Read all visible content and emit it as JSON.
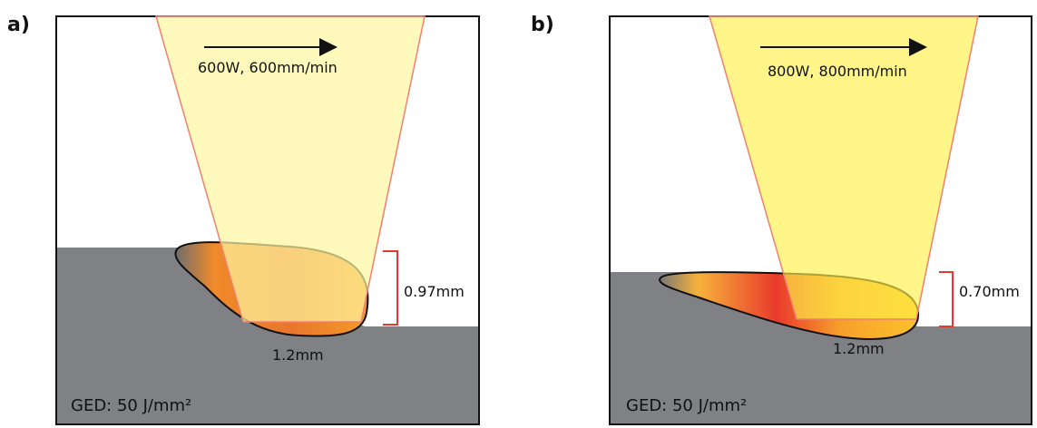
{
  "panels": [
    {
      "label": "a)",
      "process": "600W, 600mm/min",
      "depth": "0.97mm",
      "width": "1.2mm",
      "ged": "GED: 50 J/mm²"
    },
    {
      "label": "b)",
      "process": "800W, 800mm/min",
      "depth": "0.70mm",
      "width": "1.2mm",
      "ged": "GED: 50 J/mm²"
    }
  ]
}
